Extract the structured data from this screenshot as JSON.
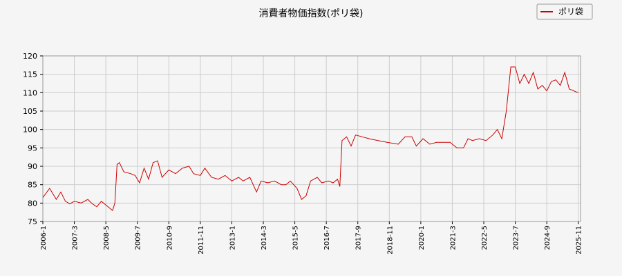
{
  "chart_data": {
    "type": "line",
    "title": "消費者物価指数(ポリ袋)",
    "xlabel": "",
    "ylabel": "",
    "ylim": [
      75,
      120
    ],
    "yticks": [
      75,
      80,
      85,
      90,
      95,
      100,
      105,
      110,
      115,
      120
    ],
    "xlim": [
      "2006-01",
      "2025-12"
    ],
    "xticks": [
      "2006-1",
      "2007-3",
      "2008-5",
      "2009-7",
      "2010-9",
      "2011-11",
      "2013-1",
      "2014-3",
      "2015-5",
      "2016-7",
      "2017-9",
      "2018-11",
      "2020-1",
      "2021-3",
      "2022-5",
      "2023-7",
      "2024-9",
      "2025-11"
    ],
    "grid": true,
    "legend": {
      "position": "top-right",
      "entries": [
        "ポリ袋"
      ]
    },
    "colors": {
      "series": "#cc0000",
      "grid": "#cccccc",
      "axis": "#000000"
    },
    "series": [
      {
        "name": "ポリ袋",
        "points": [
          [
            "2006-01",
            81.5
          ],
          [
            "2006-04",
            84.0
          ],
          [
            "2006-07",
            81.0
          ],
          [
            "2006-09",
            83.0
          ],
          [
            "2006-11",
            80.5
          ],
          [
            "2007-01",
            79.8
          ],
          [
            "2007-03",
            80.5
          ],
          [
            "2007-06",
            80.0
          ],
          [
            "2007-09",
            81.0
          ],
          [
            "2007-11",
            79.8
          ],
          [
            "2008-01",
            79.0
          ],
          [
            "2008-03",
            80.5
          ],
          [
            "2008-06",
            79.0
          ],
          [
            "2008-08",
            78.0
          ],
          [
            "2008-09",
            80.0
          ],
          [
            "2008-10",
            90.5
          ],
          [
            "2008-11",
            91.0
          ],
          [
            "2009-01",
            88.5
          ],
          [
            "2009-04",
            88.0
          ],
          [
            "2009-06",
            87.5
          ],
          [
            "2009-08",
            85.5
          ],
          [
            "2009-10",
            89.5
          ],
          [
            "2009-12",
            86.5
          ],
          [
            "2010-02",
            91.0
          ],
          [
            "2010-04",
            91.5
          ],
          [
            "2010-06",
            87.0
          ],
          [
            "2010-09",
            89.0
          ],
          [
            "2010-12",
            88.0
          ],
          [
            "2011-03",
            89.5
          ],
          [
            "2011-06",
            90.0
          ],
          [
            "2011-08",
            88.0
          ],
          [
            "2011-11",
            87.5
          ],
          [
            "2012-01",
            89.5
          ],
          [
            "2012-04",
            87.0
          ],
          [
            "2012-07",
            86.5
          ],
          [
            "2012-10",
            87.5
          ],
          [
            "2013-01",
            86.0
          ],
          [
            "2013-04",
            87.0
          ],
          [
            "2013-06",
            86.0
          ],
          [
            "2013-09",
            87.0
          ],
          [
            "2013-12",
            83.0
          ],
          [
            "2014-02",
            86.0
          ],
          [
            "2014-05",
            85.5
          ],
          [
            "2014-08",
            86.0
          ],
          [
            "2014-11",
            85.0
          ],
          [
            "2015-01",
            85.0
          ],
          [
            "2015-03",
            86.0
          ],
          [
            "2015-06",
            84.0
          ],
          [
            "2015-08",
            81.0
          ],
          [
            "2015-10",
            82.0
          ],
          [
            "2015-12",
            86.0
          ],
          [
            "2016-03",
            87.0
          ],
          [
            "2016-05",
            85.5
          ],
          [
            "2016-08",
            86.0
          ],
          [
            "2016-10",
            85.5
          ],
          [
            "2016-12",
            86.5
          ],
          [
            "2017-01",
            84.5
          ],
          [
            "2017-02",
            97.0
          ],
          [
            "2017-04",
            98.0
          ],
          [
            "2017-06",
            95.5
          ],
          [
            "2017-08",
            98.5
          ],
          [
            "2017-11",
            98.0
          ],
          [
            "2018-02",
            97.5
          ],
          [
            "2018-06",
            97.0
          ],
          [
            "2018-10",
            96.5
          ],
          [
            "2019-03",
            96.0
          ],
          [
            "2019-06",
            98.0
          ],
          [
            "2019-09",
            98.0
          ],
          [
            "2019-11",
            95.5
          ],
          [
            "2020-02",
            97.5
          ],
          [
            "2020-05",
            96.0
          ],
          [
            "2020-08",
            96.5
          ],
          [
            "2020-11",
            96.5
          ],
          [
            "2021-02",
            96.5
          ],
          [
            "2021-05",
            95.0
          ],
          [
            "2021-08",
            95.0
          ],
          [
            "2021-10",
            97.5
          ],
          [
            "2021-12",
            97.0
          ],
          [
            "2022-03",
            97.5
          ],
          [
            "2022-06",
            97.0
          ],
          [
            "2022-09",
            98.5
          ],
          [
            "2022-11",
            100.0
          ],
          [
            "2023-01",
            97.5
          ],
          [
            "2023-03",
            105.0
          ],
          [
            "2023-05",
            117.0
          ],
          [
            "2023-07",
            117.0
          ],
          [
            "2023-09",
            112.5
          ],
          [
            "2023-11",
            115.0
          ],
          [
            "2024-01",
            112.5
          ],
          [
            "2024-03",
            115.5
          ],
          [
            "2024-05",
            111.0
          ],
          [
            "2024-07",
            112.0
          ],
          [
            "2024-09",
            110.5
          ],
          [
            "2024-11",
            113.0
          ],
          [
            "2025-01",
            113.5
          ],
          [
            "2025-03",
            112.0
          ],
          [
            "2025-05",
            115.5
          ],
          [
            "2025-07",
            111.0
          ],
          [
            "2025-09",
            110.5
          ],
          [
            "2025-11",
            110.0
          ]
        ]
      }
    ]
  }
}
